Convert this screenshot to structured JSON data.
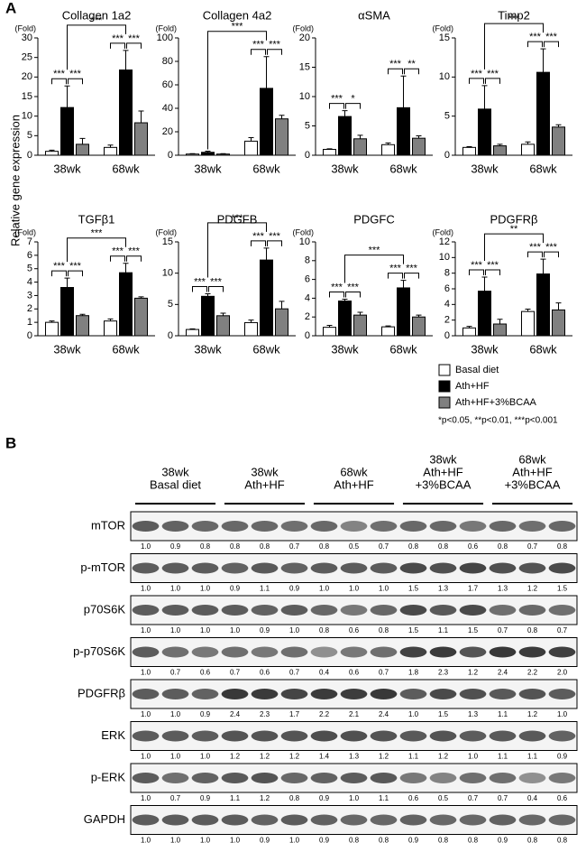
{
  "panel_labels": [
    "A",
    "B"
  ],
  "y_axis_label": "Relative gene expression",
  "significance_note": "*p<0.05, **p<0.01, ***p<0.001",
  "chart_data": [
    {
      "type": "bar",
      "title": "Collagen 1a2",
      "unit_label": "(Fold)",
      "categories": [
        "38wk",
        "68wk"
      ],
      "ylim": [
        0,
        30
      ],
      "yticks": [
        0,
        5,
        10,
        15,
        20,
        25,
        30
      ],
      "series": [
        {
          "name": "Basal diet",
          "color": "#ffffff",
          "values": [
            1.0,
            2.0
          ],
          "errors": [
            0.3,
            0.6
          ]
        },
        {
          "name": "Ath+HF",
          "color": "#000000",
          "values": [
            12.2,
            21.8
          ],
          "errors": [
            5.5,
            5.0
          ]
        },
        {
          "name": "Ath+HF+3%BCAA",
          "color": "#808080",
          "values": [
            2.8,
            8.3
          ],
          "errors": [
            1.5,
            3.0
          ]
        }
      ],
      "significance": {
        "within": [
          [
            "***",
            "***"
          ],
          [
            "***",
            "***"
          ]
        ],
        "across": "***"
      }
    },
    {
      "type": "bar",
      "title": "Collagen 4a2",
      "unit_label": "(Fold)",
      "categories": [
        "38wk",
        "68wk"
      ],
      "ylim": [
        0,
        100
      ],
      "yticks": [
        0,
        20,
        40,
        60,
        80,
        100
      ],
      "series": [
        {
          "name": "Basal diet",
          "color": "#ffffff",
          "values": [
            1.0,
            12
          ],
          "errors": [
            0.3,
            3
          ]
        },
        {
          "name": "Ath+HF",
          "color": "#000000",
          "values": [
            2.5,
            57
          ],
          "errors": [
            1.0,
            27
          ]
        },
        {
          "name": "Ath+HF+3%BCAA",
          "color": "#808080",
          "values": [
            1.0,
            31
          ],
          "errors": [
            0.3,
            3
          ]
        }
      ],
      "significance": {
        "within": [
          null,
          [
            "***",
            "***"
          ]
        ],
        "across": "***"
      }
    },
    {
      "type": "bar",
      "title": "αSMA",
      "unit_label": "(Fold)",
      "categories": [
        "38wk",
        "68wk"
      ],
      "ylim": [
        0,
        20
      ],
      "yticks": [
        0,
        5,
        10,
        15,
        20
      ],
      "series": [
        {
          "name": "Basal diet",
          "color": "#ffffff",
          "values": [
            1.0,
            1.8
          ],
          "errors": [
            0.1,
            0.3
          ]
        },
        {
          "name": "Ath+HF",
          "color": "#000000",
          "values": [
            6.6,
            8.1
          ],
          "errors": [
            1.0,
            5.4
          ]
        },
        {
          "name": "Ath+HF+3%BCAA",
          "color": "#808080",
          "values": [
            2.8,
            2.9
          ],
          "errors": [
            0.6,
            0.4
          ]
        }
      ],
      "significance": {
        "within": [
          [
            "***",
            "*"
          ],
          [
            "***",
            "**"
          ]
        ],
        "across": null
      }
    },
    {
      "type": "bar",
      "title": "Timp2",
      "unit_label": "(Fold)",
      "categories": [
        "38wk",
        "68wk"
      ],
      "ylim": [
        0,
        15
      ],
      "yticks": [
        0,
        5,
        10,
        15
      ],
      "series": [
        {
          "name": "Basal diet",
          "color": "#ffffff",
          "values": [
            1.0,
            1.4
          ],
          "errors": [
            0.1,
            0.3
          ]
        },
        {
          "name": "Ath+HF",
          "color": "#000000",
          "values": [
            5.9,
            10.6
          ],
          "errors": [
            3.0,
            3.0
          ]
        },
        {
          "name": "Ath+HF+3%BCAA",
          "color": "#808080",
          "values": [
            1.2,
            3.6
          ],
          "errors": [
            0.2,
            0.3
          ]
        }
      ],
      "significance": {
        "within": [
          [
            "***",
            "***"
          ],
          [
            "***",
            "***"
          ]
        ],
        "across": "***"
      }
    },
    {
      "type": "bar",
      "title": "TGFβ1",
      "unit_label": "(Fold)",
      "categories": [
        "38wk",
        "68wk"
      ],
      "ylim": [
        0,
        7
      ],
      "yticks": [
        0,
        1,
        2,
        3,
        4,
        5,
        6,
        7
      ],
      "series": [
        {
          "name": "Basal diet",
          "color": "#ffffff",
          "values": [
            1.0,
            1.1
          ],
          "errors": [
            0.1,
            0.15
          ]
        },
        {
          "name": "Ath+HF",
          "color": "#000000",
          "values": [
            3.6,
            4.7
          ],
          "errors": [
            0.7,
            0.7
          ]
        },
        {
          "name": "Ath+HF+3%BCAA",
          "color": "#808080",
          "values": [
            1.5,
            2.8
          ],
          "errors": [
            0.1,
            0.1
          ]
        }
      ],
      "significance": {
        "within": [
          [
            "***",
            "***"
          ],
          [
            "***",
            "***"
          ]
        ],
        "across": "***"
      }
    },
    {
      "type": "bar",
      "title": "PDGFB",
      "unit_label": "(Fold)",
      "categories": [
        "38wk",
        "68wk"
      ],
      "ylim": [
        0,
        15
      ],
      "yticks": [
        0,
        5,
        10,
        15
      ],
      "series": [
        {
          "name": "Basal diet",
          "color": "#ffffff",
          "values": [
            1.0,
            2.1
          ],
          "errors": [
            0.1,
            0.4
          ]
        },
        {
          "name": "Ath+HF",
          "color": "#000000",
          "values": [
            6.3,
            12.1
          ],
          "errors": [
            0.4,
            1.9
          ]
        },
        {
          "name": "Ath+HF+3%BCAA",
          "color": "#808080",
          "values": [
            3.2,
            4.3
          ],
          "errors": [
            0.4,
            1.2
          ]
        }
      ],
      "significance": {
        "within": [
          [
            "***",
            "***"
          ],
          [
            "***",
            "***"
          ]
        ],
        "across": "***"
      }
    },
    {
      "type": "bar",
      "title": "PDGFC",
      "unit_label": "(Fold)",
      "categories": [
        "38wk",
        "68wk"
      ],
      "ylim": [
        0,
        10
      ],
      "yticks": [
        0,
        2,
        4,
        6,
        8,
        10
      ],
      "series": [
        {
          "name": "Basal diet",
          "color": "#ffffff",
          "values": [
            0.9,
            0.95
          ],
          "errors": [
            0.2,
            0.1
          ]
        },
        {
          "name": "Ath+HF",
          "color": "#000000",
          "values": [
            3.7,
            5.1
          ],
          "errors": [
            0.2,
            0.8
          ]
        },
        {
          "name": "Ath+HF+3%BCAA",
          "color": "#808080",
          "values": [
            2.2,
            2.0
          ],
          "errors": [
            0.3,
            0.2
          ]
        }
      ],
      "significance": {
        "within": [
          [
            "***",
            "***"
          ],
          [
            "***",
            "***"
          ]
        ],
        "across": "***"
      }
    },
    {
      "type": "bar",
      "title": "PDGFRβ",
      "unit_label": "(Fold)",
      "categories": [
        "38wk",
        "68wk"
      ],
      "ylim": [
        0,
        12
      ],
      "yticks": [
        0,
        2,
        4,
        6,
        8,
        10,
        12
      ],
      "series": [
        {
          "name": "Basal diet",
          "color": "#ffffff",
          "values": [
            1.0,
            3.1
          ],
          "errors": [
            0.2,
            0.3
          ]
        },
        {
          "name": "Ath+HF",
          "color": "#000000",
          "values": [
            5.7,
            7.9
          ],
          "errors": [
            1.8,
            1.9
          ]
        },
        {
          "name": "Ath+HF+3%BCAA",
          "color": "#808080",
          "values": [
            1.5,
            3.3
          ],
          "errors": [
            0.6,
            0.9
          ]
        }
      ],
      "significance": {
        "within": [
          [
            "***",
            "***"
          ],
          [
            "***",
            "***"
          ]
        ],
        "across": "**"
      }
    }
  ],
  "blot": {
    "groups": [
      [
        "38wk",
        "Basal diet"
      ],
      [
        "38wk",
        "Ath+HF"
      ],
      [
        "68wk",
        "Ath+HF"
      ],
      [
        "38wk",
        "Ath+HF",
        "+3%BCAA"
      ],
      [
        "68wk",
        "Ath+HF",
        "+3%BCAA"
      ]
    ],
    "rows": [
      {
        "name": "mTOR",
        "values": [
          "1.0",
          "0.9",
          "0.8",
          "0.8",
          "0.8",
          "0.7",
          "0.8",
          "0.5",
          "0.7",
          "0.8",
          "0.8",
          "0.6",
          "0.8",
          "0.7",
          "0.8"
        ]
      },
      {
        "name": "p-mTOR",
        "values": [
          "1.0",
          "1.0",
          "1.0",
          "0.9",
          "1.1",
          "0.9",
          "1.0",
          "1.0",
          "1.0",
          "1.5",
          "1.3",
          "1.7",
          "1.3",
          "1.2",
          "1.5"
        ]
      },
      {
        "name": "p70S6K",
        "values": [
          "1.0",
          "1.0",
          "1.0",
          "1.0",
          "0.9",
          "1.0",
          "0.8",
          "0.6",
          "0.8",
          "1.5",
          "1.1",
          "1.5",
          "0.7",
          "0.8",
          "0.7"
        ]
      },
      {
        "name": "p-p70S6K",
        "values": [
          "1.0",
          "0.7",
          "0.6",
          "0.7",
          "0.6",
          "0.7",
          "0.4",
          "0.6",
          "0.7",
          "1.8",
          "2.3",
          "1.2",
          "2.4",
          "2.2",
          "2.0"
        ]
      },
      {
        "name": "PDGFRβ",
        "values": [
          "1.0",
          "1.0",
          "0.9",
          "2.4",
          "2.3",
          "1.7",
          "2.2",
          "2.1",
          "2.4",
          "1.0",
          "1.5",
          "1.3",
          "1.1",
          "1.2",
          "1.0"
        ]
      },
      {
        "name": "ERK",
        "values": [
          "1.0",
          "1.0",
          "1.0",
          "1.2",
          "1.2",
          "1.2",
          "1.4",
          "1.3",
          "1.2",
          "1.1",
          "1.2",
          "1.0",
          "1.1",
          "1.1",
          "0.9"
        ]
      },
      {
        "name": "p-ERK",
        "values": [
          "1.0",
          "0.7",
          "0.9",
          "1.1",
          "1.2",
          "0.8",
          "0.9",
          "1.0",
          "1.1",
          "0.6",
          "0.5",
          "0.7",
          "0.7",
          "0.4",
          "0.6"
        ]
      },
      {
        "name": "GAPDH",
        "values": [
          "1.0",
          "1.0",
          "1.0",
          "1.0",
          "0.9",
          "1.0",
          "0.9",
          "0.8",
          "0.8",
          "0.9",
          "0.8",
          "0.8",
          "0.9",
          "0.8",
          "0.8"
        ]
      }
    ]
  }
}
